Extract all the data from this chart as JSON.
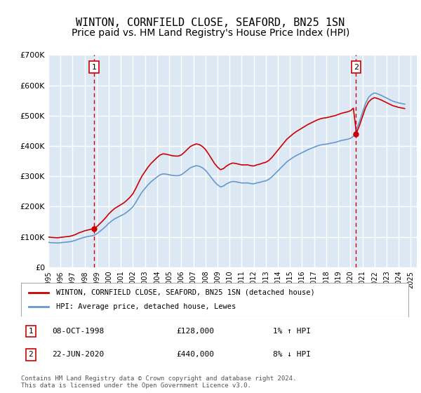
{
  "title": "WINTON, CORNFIELD CLOSE, SEAFORD, BN25 1SN",
  "subtitle": "Price paid vs. HM Land Registry's House Price Index (HPI)",
  "title_fontsize": 11,
  "subtitle_fontsize": 10,
  "ylabel_ticks": [
    "£0",
    "£100K",
    "£200K",
    "£300K",
    "£400K",
    "£500K",
    "£600K",
    "£700K"
  ],
  "ylabel_values": [
    0,
    100000,
    200000,
    300000,
    400000,
    500000,
    600000,
    700000
  ],
  "ylim": [
    0,
    700000
  ],
  "xlim_start": 1995.0,
  "xlim_end": 2025.5,
  "background_color": "#dce9f5",
  "plot_bg_color": "#dce9f5",
  "grid_color": "#ffffff",
  "sale1_date": 1998.77,
  "sale1_price": 128000,
  "sale1_label": "08-OCT-1998",
  "sale1_hpi_text": "1% ↑ HPI",
  "sale2_date": 2020.47,
  "sale2_price": 440000,
  "sale2_label": "22-JUN-2020",
  "sale2_hpi_text": "8% ↓ HPI",
  "line1_color": "#cc0000",
  "line2_color": "#6699cc",
  "vline_color": "#cc0000",
  "marker_color": "#cc0000",
  "legend_label1": "WINTON, CORNFIELD CLOSE, SEAFORD, BN25 1SN (detached house)",
  "legend_label2": "HPI: Average price, detached house, Lewes",
  "footer": "Contains HM Land Registry data © Crown copyright and database right 2024.\nThis data is licensed under the Open Government Licence v3.0.",
  "hpi_years": [
    1995.0,
    1995.25,
    1995.5,
    1995.75,
    1996.0,
    1996.25,
    1996.5,
    1996.75,
    1997.0,
    1997.25,
    1997.5,
    1997.75,
    1998.0,
    1998.25,
    1998.5,
    1998.75,
    1999.0,
    1999.25,
    1999.5,
    1999.75,
    2000.0,
    2000.25,
    2000.5,
    2000.75,
    2001.0,
    2001.25,
    2001.5,
    2001.75,
    2002.0,
    2002.25,
    2002.5,
    2002.75,
    2003.0,
    2003.25,
    2003.5,
    2003.75,
    2004.0,
    2004.25,
    2004.5,
    2004.75,
    2005.0,
    2005.25,
    2005.5,
    2005.75,
    2006.0,
    2006.25,
    2006.5,
    2006.75,
    2007.0,
    2007.25,
    2007.5,
    2007.75,
    2008.0,
    2008.25,
    2008.5,
    2008.75,
    2009.0,
    2009.25,
    2009.5,
    2009.75,
    2010.0,
    2010.25,
    2010.5,
    2010.75,
    2011.0,
    2011.25,
    2011.5,
    2011.75,
    2012.0,
    2012.25,
    2012.5,
    2012.75,
    2013.0,
    2013.25,
    2013.5,
    2013.75,
    2014.0,
    2014.25,
    2014.5,
    2014.75,
    2015.0,
    2015.25,
    2015.5,
    2015.75,
    2016.0,
    2016.25,
    2016.5,
    2016.75,
    2017.0,
    2017.25,
    2017.5,
    2017.75,
    2018.0,
    2018.25,
    2018.5,
    2018.75,
    2019.0,
    2019.25,
    2019.5,
    2019.75,
    2020.0,
    2020.25,
    2020.5,
    2020.75,
    2021.0,
    2021.25,
    2021.5,
    2021.75,
    2022.0,
    2022.25,
    2022.5,
    2022.75,
    2023.0,
    2023.25,
    2023.5,
    2023.75,
    2024.0,
    2024.25,
    2024.5
  ],
  "hpi_values": [
    82000,
    81000,
    80500,
    80000,
    81000,
    82000,
    83000,
    84000,
    86000,
    89000,
    93000,
    96000,
    99000,
    101000,
    103000,
    105000,
    110000,
    118000,
    126000,
    135000,
    145000,
    153000,
    160000,
    165000,
    170000,
    175000,
    182000,
    190000,
    200000,
    215000,
    232000,
    248000,
    260000,
    272000,
    282000,
    290000,
    298000,
    305000,
    308000,
    307000,
    305000,
    303000,
    302000,
    302000,
    305000,
    312000,
    320000,
    328000,
    332000,
    335000,
    333000,
    328000,
    320000,
    308000,
    295000,
    282000,
    272000,
    265000,
    268000,
    275000,
    280000,
    283000,
    282000,
    280000,
    278000,
    278000,
    278000,
    276000,
    275000,
    278000,
    280000,
    283000,
    285000,
    290000,
    298000,
    308000,
    318000,
    328000,
    338000,
    348000,
    355000,
    362000,
    368000,
    373000,
    378000,
    383000,
    388000,
    392000,
    396000,
    400000,
    403000,
    405000,
    406000,
    408000,
    410000,
    412000,
    415000,
    418000,
    420000,
    422000,
    425000,
    432000,
    455000,
    480000,
    510000,
    540000,
    560000,
    570000,
    575000,
    572000,
    568000,
    563000,
    558000,
    553000,
    548000,
    545000,
    542000,
    540000,
    538000
  ],
  "price_paid_dates": [
    1998.77,
    2020.47
  ],
  "price_paid_values": [
    128000,
    440000
  ]
}
